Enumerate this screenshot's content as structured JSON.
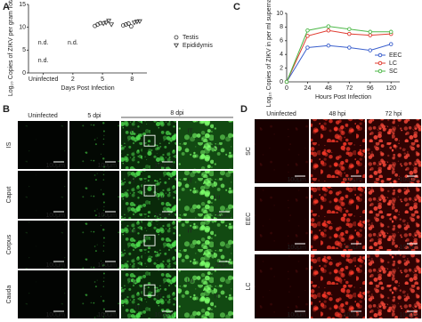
{
  "panel_labels": [
    "A",
    "B",
    "C",
    "D"
  ],
  "chart_data": [
    {
      "type": "scatter",
      "y_label": "Log₁₀ Copies of ZIKV per gram Total RNA",
      "x_label": "Days Post Infection",
      "categories": [
        "Uninfected",
        "2",
        "5",
        "8"
      ],
      "ylim": [
        0,
        15
      ],
      "yticks": [
        0,
        5,
        10,
        15
      ],
      "series": [
        {
          "name": "Testis",
          "marker": "circle",
          "color": "#333333",
          "values": [
            null,
            null,
            [
              10.3,
              10.6,
              10.9
            ],
            [
              10.4,
              10.6,
              10.8,
              10.2
            ]
          ]
        },
        {
          "name": "Epididymis",
          "marker": "triangle-down",
          "color": "#333333",
          "values": [
            null,
            null,
            [
              10.8,
              11.0,
              11.4,
              10.6
            ],
            [
              11.0,
              11.2,
              11.3
            ]
          ]
        }
      ],
      "annotations": [
        {
          "category": 0,
          "text": "n.d."
        },
        {
          "category": 0,
          "text": "n.d."
        },
        {
          "category": 1,
          "text": "n.d."
        }
      ]
    },
    {
      "type": "line",
      "y_label": "Log₁₀ Copies of ZIKV in per ml supernatant",
      "x_label": "Hours Post Infection",
      "x": [
        0,
        24,
        48,
        72,
        96,
        120
      ],
      "xlim": [
        0,
        130
      ],
      "xticks": [
        0,
        24,
        48,
        72,
        96,
        120
      ],
      "ylim": [
        0,
        10
      ],
      "yticks": [
        0,
        2,
        4,
        6,
        8,
        10
      ],
      "legend": "lower right",
      "series": [
        {
          "name": "EEC",
          "color": "#3a5fcd",
          "values": [
            0,
            5.0,
            5.3,
            5.0,
            4.6,
            5.5
          ]
        },
        {
          "name": "LC",
          "color": "#e03c31",
          "values": [
            0,
            6.7,
            7.5,
            7.0,
            6.8,
            7.0
          ]
        },
        {
          "name": "SC",
          "color": "#4db848",
          "values": [
            0,
            7.5,
            8.1,
            7.7,
            7.3,
            7.3
          ]
        }
      ]
    }
  ],
  "panel_b": {
    "columns": [
      "Uninfected",
      "5 dpi",
      "8 dpi"
    ],
    "rows": [
      {
        "label": "IS",
        "cells": [
          {
            "scale": "100μm"
          },
          {
            "scale": "100μm"
          },
          {
            "scale": "100μm",
            "labels": [
              "IT"
            ]
          },
          {
            "labels": [
              "IT",
              "Lu"
            ]
          }
        ]
      },
      {
        "label": "Caput",
        "cells": [
          {
            "scale": "100μm"
          },
          {
            "scale": "100μm"
          },
          {
            "scale": "100μm",
            "labels": [
              "IT",
              "Lu"
            ]
          },
          {
            "scale": "25μm",
            "labels": [
              "IT",
              "Lu"
            ]
          }
        ]
      },
      {
        "label": "Corpus",
        "cells": [
          {
            "scale": "100μm"
          },
          {
            "scale": "100μm"
          },
          {
            "labels": [
              "Lu"
            ]
          },
          {
            "scale": "25μm",
            "labels": [
              "IT"
            ]
          }
        ]
      },
      {
        "label": "Cauda",
        "cells": [
          {
            "scale": "100μm"
          },
          {
            "scale": "100μm"
          },
          {
            "scale": "100μm",
            "labels": [
              "Lu",
              "IT",
              "IT"
            ]
          },
          {
            "labels": [
              "Lu",
              "IT"
            ]
          }
        ]
      }
    ]
  },
  "panel_d": {
    "columns": [
      "Uninfected",
      "48 hpi",
      "72 hpi"
    ],
    "rows": [
      {
        "label": "SC",
        "cells": [
          {
            "scale": "100μm"
          },
          {
            "scale": "100μm"
          },
          {
            "scale": "100μm"
          }
        ]
      },
      {
        "label": "EEC",
        "cells": [
          {
            "scale": "100μm"
          },
          {
            "scale": "100μm"
          },
          {
            "scale": "100μm"
          }
        ]
      },
      {
        "label": "LC",
        "cells": [
          {
            "scale": "100μm"
          },
          {
            "scale": "100μm"
          },
          {
            "scale": "100μm"
          }
        ]
      }
    ]
  }
}
